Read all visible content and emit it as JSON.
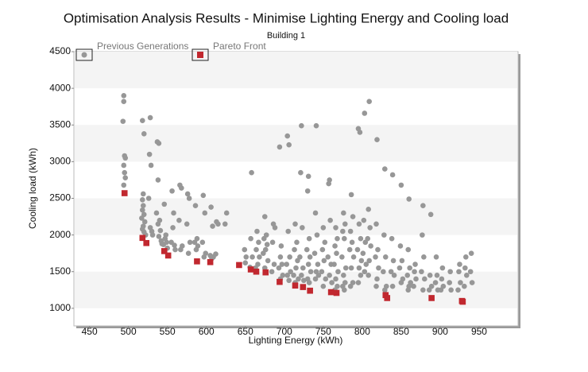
{
  "chart_data": {
    "type": "scatter",
    "title": "Optimisation Analysis Results - Minimise Lighting Energy and Cooling load",
    "subtitle": "Building 1",
    "x_label": "Lighting Energy (kWh)",
    "y_label": "Cooling load (kWh)",
    "xlim": [
      430,
      1000
    ],
    "ylim": [
      760,
      4500
    ],
    "xticks": [
      450,
      500,
      550,
      600,
      650,
      700,
      750,
      800,
      850,
      900,
      950
    ],
    "yticks": [
      1000,
      1500,
      2000,
      2500,
      3000,
      3500,
      4000,
      4500
    ],
    "grid": true,
    "legend": "upper left",
    "series": [
      {
        "name": "Previous Generations",
        "color": "#979797",
        "x": [
          494,
          494,
          493,
          495,
          496,
          494,
          495,
          496,
          494,
          518,
          520,
          519,
          518,
          519,
          518,
          520,
          517,
          521,
          519,
          518,
          520,
          522,
          528,
          527,
          529,
          526,
          528,
          530,
          531,
          537,
          539,
          538,
          536,
          540,
          538,
          541,
          539,
          542,
          543,
          546,
          548,
          547,
          549,
          545,
          550,
          556,
          558,
          557,
          555,
          559,
          560,
          566,
          568,
          565,
          569,
          567,
          576,
          578,
          575,
          579,
          577,
          586,
          588,
          585,
          589,
          587,
          596,
          598,
          595,
          599,
          597,
          606,
          608,
          605,
          609,
          607,
          613,
          615,
          612,
          626,
          624,
          649,
          651,
          650,
          658,
          657,
          659,
          656,
          665,
          667,
          664,
          668,
          666,
          663,
          675,
          677,
          674,
          678,
          676,
          673,
          679,
          675,
          686,
          688,
          685,
          687,
          684,
          694,
          696,
          695,
          697,
          693,
          698,
          695,
          704,
          706,
          705,
          707,
          703,
          708,
          704,
          706,
          714,
          716,
          713,
          717,
          715,
          712,
          718,
          714,
          722,
          721,
          723,
          720,
          724,
          722,
          725,
          731,
          730,
          732,
          729,
          733,
          731,
          734,
          730,
          732,
          741,
          740,
          742,
          739,
          743,
          741,
          744,
          740,
          750,
          752,
          749,
          751,
          748,
          753,
          750,
          758,
          757,
          759,
          756,
          760,
          758,
          761,
          766,
          768,
          765,
          767,
          764,
          769,
          766,
          768,
          765,
          776,
          778,
          775,
          777,
          774,
          779,
          776,
          778,
          775,
          777,
          786,
          788,
          785,
          787,
          784,
          789,
          786,
          788,
          785,
          795,
          797,
          796,
          798,
          794,
          799,
          796,
          798,
          795,
          803,
          802,
          804,
          801,
          805,
          803,
          809,
          808,
          810,
          807,
          811,
          809,
          808,
          819,
          818,
          820,
          817,
          821,
          819,
          818,
          829,
          828,
          830,
          827,
          831,
          829,
          839,
          838,
          840,
          837,
          841,
          839,
          850,
          849,
          851,
          848,
          852,
          850,
          860,
          859,
          861,
          858,
          862,
          860,
          859,
          868,
          867,
          869,
          866,
          878,
          877,
          879,
          876,
          880,
          878,
          888,
          887,
          889,
          886,
          895,
          896,
          894,
          897,
          903,
          902,
          904,
          901,
          913,
          912,
          914,
          925,
          924,
          926,
          923,
          933,
          932,
          934,
          931,
          940,
          939,
          941
        ],
        "values": [
          3900,
          3820,
          3550,
          3080,
          3050,
          2950,
          2850,
          2780,
          2680,
          3560,
          3380,
          2560,
          2480,
          2400,
          2340,
          2280,
          2230,
          2180,
          2120,
          2080,
          2040,
          2000,
          3600,
          3100,
          2950,
          2500,
          2100,
          2050,
          2000,
          3270,
          3250,
          2750,
          2300,
          2200,
          2150,
          2060,
          1980,
          1920,
          1880,
          2420,
          2000,
          1950,
          1900,
          1870,
          1820,
          2600,
          2300,
          2100,
          1900,
          1860,
          1800,
          2680,
          2640,
          2200,
          1850,
          1800,
          2560,
          2500,
          2150,
          1900,
          1750,
          2400,
          1950,
          1900,
          1850,
          1800,
          2540,
          2300,
          1900,
          1750,
          1700,
          2380,
          2120,
          1720,
          1700,
          1680,
          2180,
          2150,
          1740,
          2300,
          2150,
          1800,
          1700,
          1620,
          2850,
          1950,
          1700,
          1560,
          2050,
          1900,
          1800,
          1700,
          1600,
          1550,
          2250,
          2000,
          1950,
          1870,
          1800,
          1750,
          1650,
          1550,
          2150,
          2100,
          1900,
          1600,
          1500,
          3200,
          1850,
          1700,
          1600,
          1550,
          1450,
          1400,
          3350,
          3230,
          2050,
          1700,
          1600,
          1500,
          1450,
          1380,
          2150,
          1900,
          1800,
          1650,
          1550,
          1450,
          1400,
          1350,
          3490,
          2850,
          2100,
          1700,
          1550,
          1450,
          1380,
          2800,
          2600,
          1950,
          1800,
          1700,
          1600,
          1500,
          1400,
          1350,
          3490,
          2300,
          2000,
          1750,
          1600,
          1500,
          1450,
          1400,
          2100,
          1900,
          1800,
          1650,
          1500,
          1400,
          1300,
          2750,
          2700,
          2200,
          1700,
          1600,
          1450,
          1350,
          2100,
          1950,
          1850,
          1750,
          1600,
          1500,
          1400,
          1300,
          1250,
          2300,
          2150,
          2050,
          1950,
          1700,
          1550,
          1450,
          1350,
          1300,
          1250,
          2550,
          2250,
          2050,
          1900,
          1800,
          1700,
          1550,
          1350,
          1300,
          3450,
          3400,
          2150,
          1950,
          1800,
          1650,
          1550,
          1450,
          1350,
          3660,
          2200,
          1900,
          1750,
          1600,
          1500,
          3820,
          2350,
          2100,
          1950,
          1850,
          1650,
          1450,
          3300,
          2150,
          1800,
          1700,
          1550,
          1400,
          1300,
          2900,
          2000,
          1700,
          1500,
          1300,
          1250,
          2820,
          1950,
          1650,
          1500,
          1450,
          1300,
          2680,
          1850,
          1650,
          1550,
          1400,
          1350,
          2490,
          1800,
          1550,
          1450,
          1350,
          1300,
          1250,
          1600,
          1500,
          1400,
          1300,
          2400,
          2000,
          1700,
          1500,
          1400,
          1250,
          2280,
          1450,
          1300,
          1250,
          1700,
          1450,
          1350,
          1250,
          1550,
          1400,
          1300,
          1250,
          1500,
          1350,
          1250,
          1600,
          1500,
          1350,
          1250,
          1700,
          1550,
          1450,
          1300,
          1750,
          1500,
          1350
        ]
      },
      {
        "name": "Pareto Front",
        "color": "#c1282f",
        "x": [
          495,
          518,
          523,
          546,
          551,
          588,
          605,
          642,
          657,
          664,
          676,
          694,
          714,
          724,
          733,
          760,
          767,
          830,
          832,
          889,
          928,
          929
        ],
        "values": [
          2570,
          1960,
          1890,
          1780,
          1720,
          1640,
          1630,
          1590,
          1530,
          1500,
          1490,
          1360,
          1310,
          1290,
          1240,
          1220,
          1210,
          1180,
          1140,
          1140,
          1100,
          1090
        ]
      }
    ]
  }
}
